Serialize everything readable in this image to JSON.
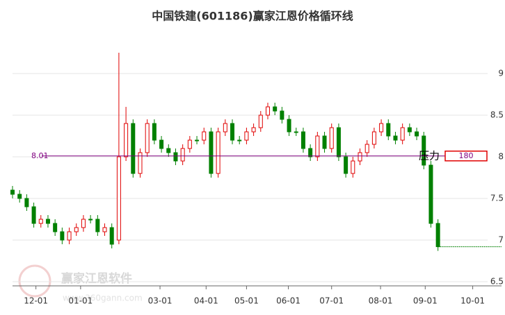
{
  "chart_data": {
    "type": "candlestick",
    "title": "中国铁建(601186)赢家江恩价格循环线",
    "watermark": "赢家江恩软件",
    "watermark_url": "www.360gann.com",
    "series": [
      {
        "name": null,
        "up_color": "#e00000",
        "down_color": "#008000",
        "open": [
          7.6,
          7.55,
          7.5,
          7.4,
          7.2,
          7.25,
          7.2,
          7.1,
          7.0,
          7.1,
          7.15,
          7.25,
          7.25,
          7.1,
          7.15,
          7.0,
          8.0,
          8.4,
          7.8,
          8.05,
          8.4,
          8.2,
          8.1,
          8.05,
          7.95,
          8.1,
          8.2,
          8.2,
          8.3,
          7.8,
          8.3,
          8.4,
          8.2,
          8.2,
          8.3,
          8.35,
          8.5,
          8.6,
          8.55,
          8.45,
          8.3,
          8.3,
          8.1,
          8.0,
          8.25,
          8.1,
          8.35,
          8.0,
          7.8,
          7.95,
          8.05,
          8.15,
          8.3,
          8.4,
          8.25,
          8.2,
          8.35,
          8.3,
          8.25,
          7.9,
          7.2
        ],
        "high": [
          7.65,
          7.6,
          7.55,
          7.45,
          7.3,
          7.3,
          7.25,
          7.15,
          7.15,
          7.2,
          7.3,
          7.3,
          7.3,
          7.2,
          7.2,
          9.25,
          8.6,
          8.45,
          8.1,
          8.45,
          8.45,
          8.25,
          8.15,
          8.1,
          8.15,
          8.25,
          8.25,
          8.35,
          8.35,
          8.35,
          8.45,
          8.45,
          8.25,
          8.35,
          8.4,
          8.55,
          8.65,
          8.65,
          8.6,
          8.5,
          8.35,
          8.35,
          8.15,
          8.3,
          8.3,
          8.4,
          8.4,
          8.05,
          8.0,
          8.1,
          8.2,
          8.35,
          8.45,
          8.45,
          8.3,
          8.4,
          8.4,
          8.35,
          8.3,
          7.95,
          7.25
        ],
        "low": [
          7.5,
          7.45,
          7.35,
          7.15,
          7.15,
          7.15,
          7.05,
          6.95,
          6.95,
          7.05,
          7.1,
          7.2,
          7.05,
          7.05,
          6.9,
          6.95,
          7.95,
          7.75,
          7.75,
          8.0,
          8.15,
          8.05,
          8.0,
          7.9,
          7.9,
          8.05,
          8.15,
          8.15,
          7.75,
          7.75,
          8.25,
          8.15,
          8.15,
          8.15,
          8.25,
          8.3,
          8.45,
          8.5,
          8.4,
          8.25,
          8.25,
          8.05,
          7.95,
          7.95,
          8.05,
          8.05,
          7.95,
          7.75,
          7.75,
          7.9,
          8.0,
          8.1,
          8.25,
          8.2,
          8.15,
          8.15,
          8.25,
          8.2,
          7.85,
          7.15,
          6.87
        ],
        "close": [
          7.55,
          7.5,
          7.4,
          7.2,
          7.25,
          7.2,
          7.1,
          7.0,
          7.1,
          7.15,
          7.25,
          7.25,
          7.1,
          7.15,
          6.95,
          8.0,
          8.4,
          7.8,
          8.05,
          8.4,
          8.2,
          8.1,
          8.05,
          7.95,
          8.1,
          8.2,
          8.2,
          8.3,
          7.8,
          8.3,
          8.4,
          8.2,
          8.2,
          8.3,
          8.35,
          8.5,
          8.6,
          8.55,
          8.45,
          8.3,
          8.3,
          8.1,
          8.0,
          8.25,
          8.1,
          8.35,
          8.0,
          7.8,
          7.95,
          8.05,
          8.15,
          8.3,
          8.4,
          8.25,
          8.2,
          8.35,
          8.3,
          8.25,
          7.9,
          7.2,
          6.92
        ]
      }
    ],
    "xlim": [
      0,
      67
    ],
    "xticks": [
      {
        "value": 3.3,
        "label": "12-01"
      },
      {
        "value": 9.6,
        "label": "01-01"
      },
      {
        "value": 20.8,
        "label": "03-01"
      },
      {
        "value": 27.3,
        "label": "04-01"
      },
      {
        "value": 33,
        "label": "05-01"
      },
      {
        "value": 38.9,
        "label": "06-01"
      },
      {
        "value": 45,
        "label": "07-01"
      },
      {
        "value": 51.9,
        "label": "08-01"
      },
      {
        "value": 58.2,
        "label": "09-01"
      },
      {
        "value": 64.9,
        "label": "10-01"
      }
    ],
    "ylim": [
      6.45,
      9.5
    ],
    "yticks": [
      6.5,
      7,
      7.5,
      8,
      8.5,
      9
    ],
    "grid": true,
    "resistance_line": 8.01,
    "resistance_color": "#800080",
    "annotation": "压力",
    "annotation_box": "180"
  }
}
